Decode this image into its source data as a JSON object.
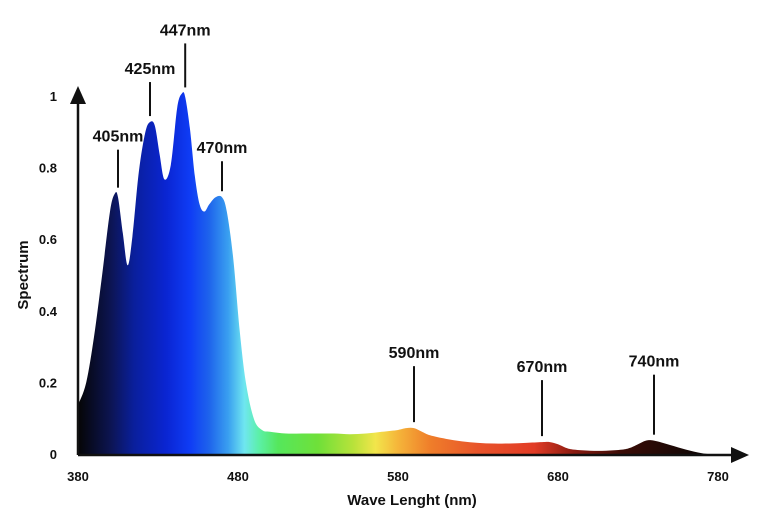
{
  "chart_data": {
    "type": "area",
    "title": "",
    "xlabel": "Wave Lenght (nm)",
    "ylabel": "Spectrum",
    "xlim": [
      380,
      780
    ],
    "ylim": [
      0,
      1
    ],
    "x_ticks": [
      "380",
      "480",
      "580",
      "680",
      "780"
    ],
    "y_ticks": [
      "0",
      "0.2",
      "0.4",
      "0.6",
      "0.8",
      "1"
    ],
    "grid": false,
    "legend": "none",
    "fill": "spectral color gradient by wavelength",
    "series": [
      {
        "x": [
          380,
          385,
          390,
          395,
          400,
          403,
          405,
          408,
          411,
          414,
          418,
          422,
          425,
          428,
          431,
          434,
          438,
          442,
          445,
          447,
          450,
          453,
          456,
          459,
          462,
          466,
          470,
          473,
          477,
          481,
          485,
          490,
          495,
          500,
          510,
          520,
          530,
          540,
          550,
          560,
          570,
          580,
          585,
          590,
          595,
          600,
          610,
          620,
          630,
          640,
          650,
          660,
          670,
          675,
          680,
          685,
          690,
          700,
          710,
          720,
          725,
          730,
          735,
          740,
          750,
          760,
          770,
          780
        ],
        "y": [
          0.14,
          0.2,
          0.33,
          0.5,
          0.68,
          0.73,
          0.72,
          0.62,
          0.53,
          0.61,
          0.79,
          0.9,
          0.93,
          0.92,
          0.84,
          0.77,
          0.81,
          0.97,
          1.01,
          1.0,
          0.91,
          0.78,
          0.7,
          0.68,
          0.7,
          0.72,
          0.72,
          0.68,
          0.55,
          0.35,
          0.2,
          0.1,
          0.07,
          0.065,
          0.06,
          0.06,
          0.06,
          0.06,
          0.058,
          0.06,
          0.065,
          0.07,
          0.075,
          0.075,
          0.065,
          0.055,
          0.045,
          0.038,
          0.034,
          0.032,
          0.032,
          0.034,
          0.036,
          0.036,
          0.03,
          0.02,
          0.015,
          0.012,
          0.012,
          0.015,
          0.02,
          0.03,
          0.04,
          0.04,
          0.028,
          0.015,
          0.005,
          0.0
        ]
      }
    ],
    "annotations": [
      {
        "label": "405nm",
        "x": 405,
        "y": 0.73
      },
      {
        "label": "425nm",
        "x": 425,
        "y": 0.93
      },
      {
        "label": "447nm",
        "x": 447,
        "y": 1.01
      },
      {
        "label": "470nm",
        "x": 470,
        "y": 0.72
      },
      {
        "label": "590nm",
        "x": 590,
        "y": 0.075
      },
      {
        "label": "670nm",
        "x": 670,
        "y": 0.036
      },
      {
        "label": "740nm",
        "x": 740,
        "y": 0.04
      }
    ],
    "gradient_stops": [
      {
        "x": 380,
        "color": "#050505"
      },
      {
        "x": 400,
        "color": "#0c1450"
      },
      {
        "x": 415,
        "color": "#0a1f9c"
      },
      {
        "x": 435,
        "color": "#0a25d2"
      },
      {
        "x": 450,
        "color": "#0f3cf5"
      },
      {
        "x": 462,
        "color": "#1e64ec"
      },
      {
        "x": 474,
        "color": "#3aa0f0"
      },
      {
        "x": 484,
        "color": "#6fe6f0"
      },
      {
        "x": 493,
        "color": "#5cf0a8"
      },
      {
        "x": 505,
        "color": "#55e75c"
      },
      {
        "x": 530,
        "color": "#6fe039"
      },
      {
        "x": 552,
        "color": "#b8e23a"
      },
      {
        "x": 566,
        "color": "#f2e54b"
      },
      {
        "x": 580,
        "color": "#f5b53a"
      },
      {
        "x": 600,
        "color": "#ef7e2a"
      },
      {
        "x": 630,
        "color": "#e8542a"
      },
      {
        "x": 665,
        "color": "#e23c26"
      },
      {
        "x": 690,
        "color": "#8a1a10"
      },
      {
        "x": 720,
        "color": "#3a0c06"
      },
      {
        "x": 780,
        "color": "#050505"
      }
    ]
  }
}
